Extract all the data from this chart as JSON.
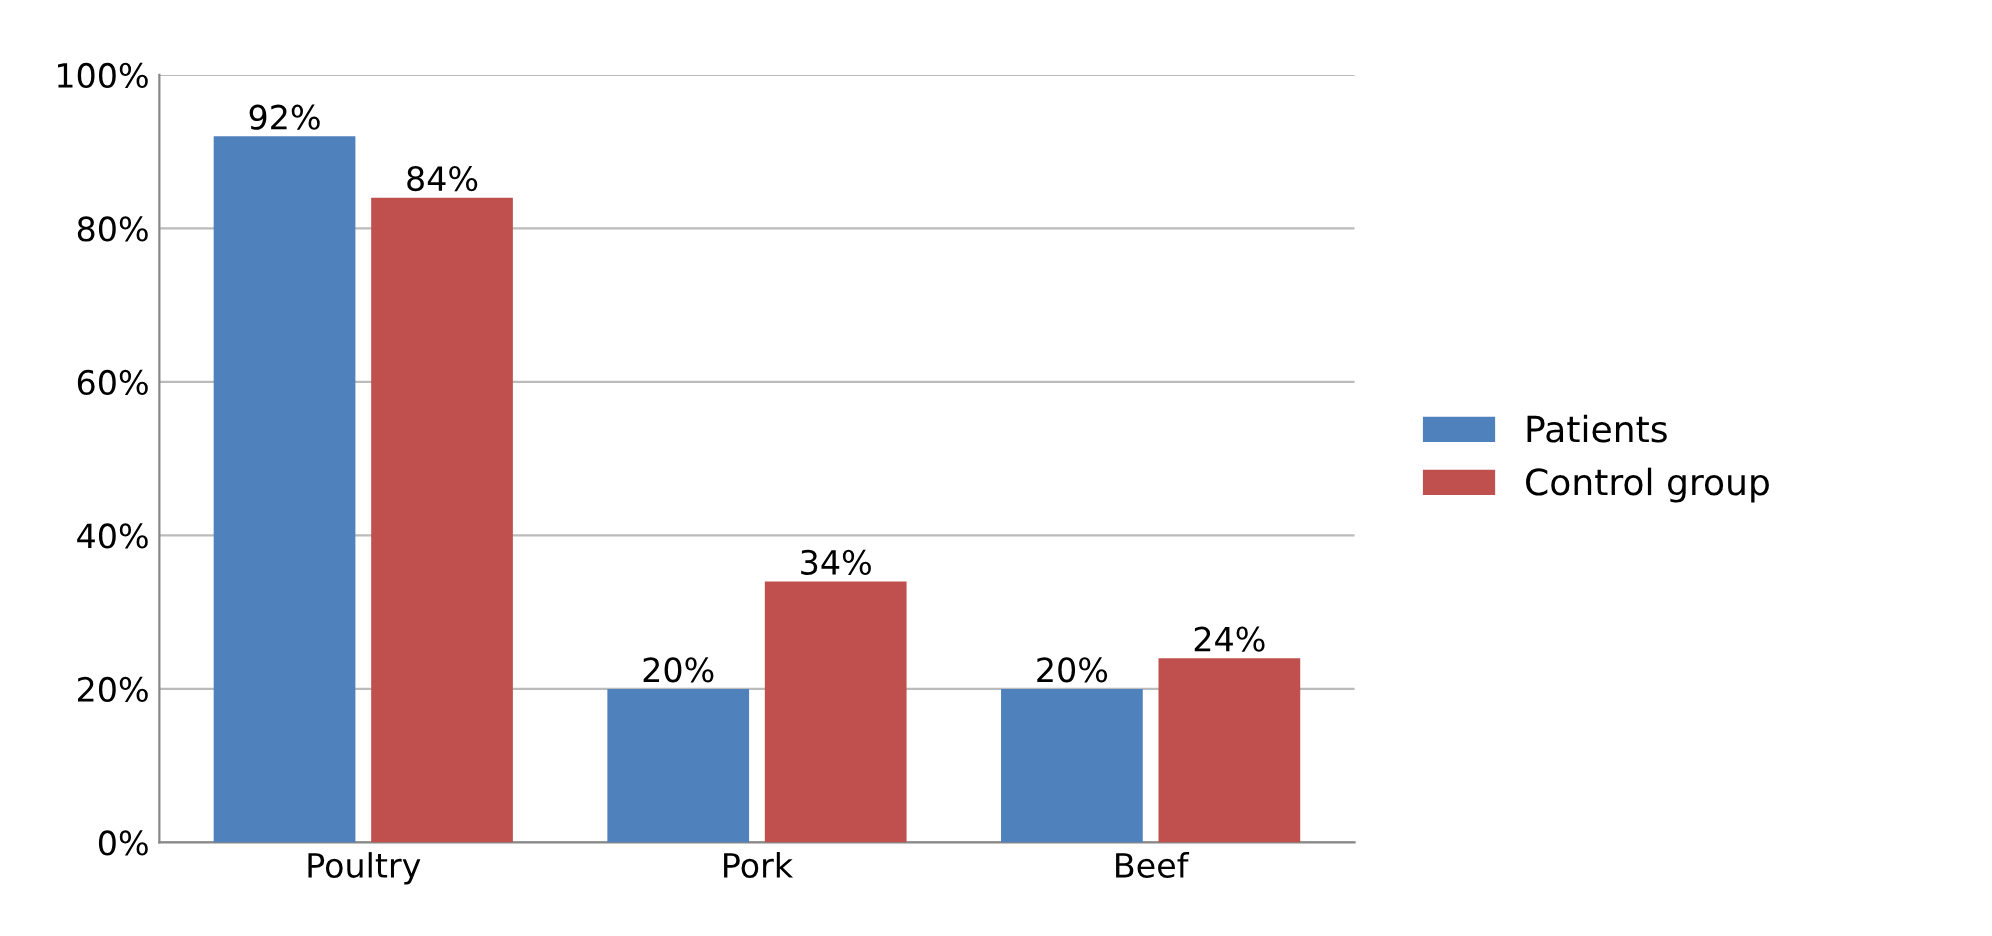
{
  "chart_data": {
    "type": "bar",
    "categories": [
      "Poultry",
      "Pork",
      "Beef"
    ],
    "series": [
      {
        "name": "Patients",
        "color": "#4f81bd",
        "values": [
          92,
          20,
          20
        ],
        "value_labels": [
          "92%",
          "20%",
          "20%"
        ]
      },
      {
        "name": "Control group",
        "color": "#c0504d",
        "values": [
          84,
          34,
          24
        ],
        "value_labels": [
          "84%",
          "34%",
          "24%"
        ]
      }
    ],
    "ylim": [
      0,
      100
    ],
    "yticks": [
      {
        "value": 0,
        "label": "0%"
      },
      {
        "value": 20,
        "label": "20%"
      },
      {
        "value": 40,
        "label": "40%"
      },
      {
        "value": 60,
        "label": "60%"
      },
      {
        "value": 80,
        "label": "80%"
      },
      {
        "value": 100,
        "label": "100%"
      }
    ],
    "grid": "y",
    "legend": "right"
  }
}
